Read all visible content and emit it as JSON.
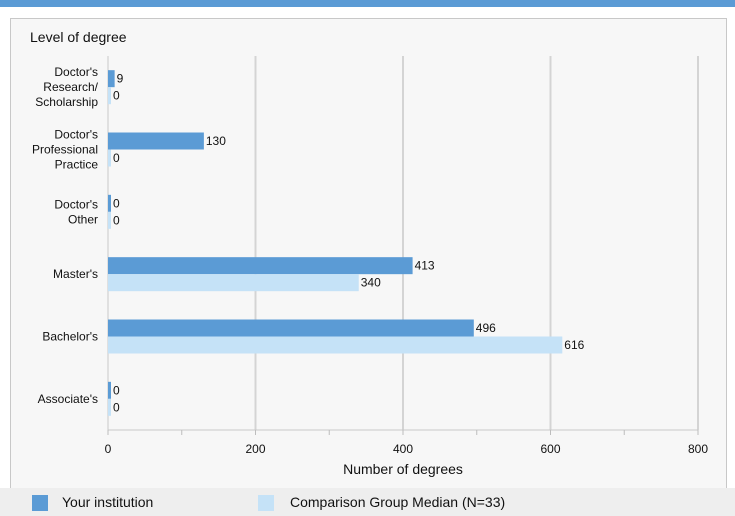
{
  "chart_data": {
    "type": "bar",
    "orientation": "horizontal",
    "title": "Level of degree",
    "xlabel": "Number of degrees",
    "xlim": [
      0,
      800
    ],
    "xticks": [
      0,
      200,
      400,
      600,
      800
    ],
    "grid": true,
    "legend_position": "bottom",
    "categories": [
      [
        "Doctor's",
        "Research/",
        "Scholarship"
      ],
      [
        "Doctor's",
        "Professional",
        "Practice"
      ],
      [
        "Doctor's",
        "Other"
      ],
      [
        "Master's"
      ],
      [
        "Bachelor's"
      ],
      [
        "Associate's"
      ]
    ],
    "series": [
      {
        "name": "Your institution",
        "color": "#5b9bd5",
        "values": [
          9,
          130,
          0,
          413,
          496,
          0
        ]
      },
      {
        "name": "Comparison Group Median (N=33)",
        "color": "#c5e2f7",
        "values": [
          0,
          0,
          0,
          340,
          616,
          0
        ]
      }
    ]
  }
}
